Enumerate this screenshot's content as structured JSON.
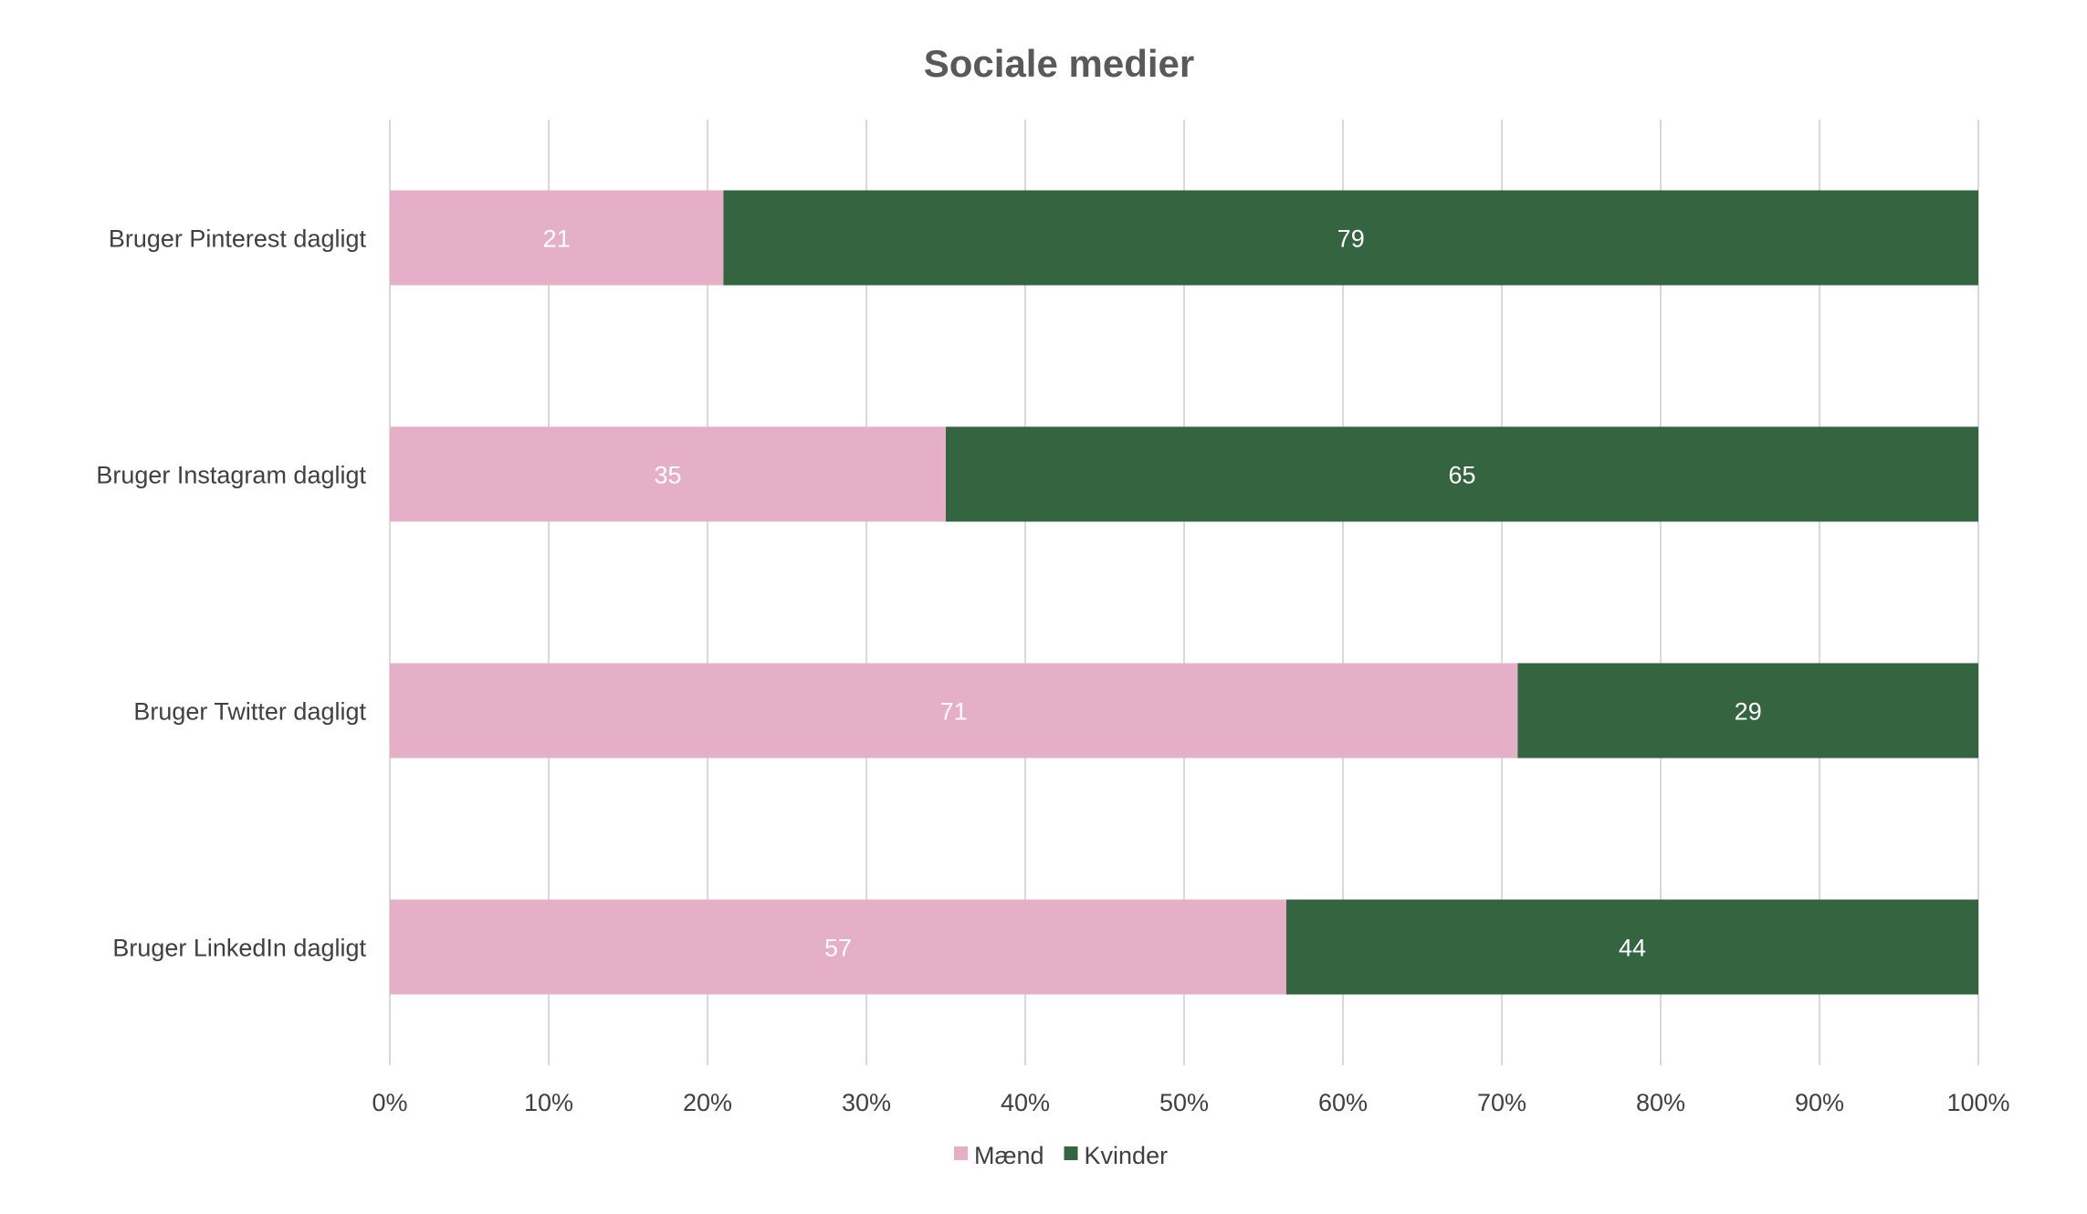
{
  "chart_data": {
    "type": "bar",
    "orientation": "horizontal",
    "stacked": "percent",
    "title": "Sociale medier",
    "categories": [
      "Bruger Pinterest dagligt",
      "Bruger Instagram dagligt",
      "Bruger Twitter dagligt",
      "Bruger LinkedIn dagligt"
    ],
    "series": [
      {
        "name": "Mænd",
        "color": "#e6afc8",
        "values": [
          21,
          35,
          71,
          57
        ]
      },
      {
        "name": "Kvinder",
        "color": "#356441",
        "values": [
          79,
          65,
          29,
          44
        ]
      }
    ],
    "xlim": [
      0,
      100
    ],
    "xticks": [
      "0%",
      "10%",
      "20%",
      "30%",
      "40%",
      "50%",
      "60%",
      "70%",
      "80%",
      "90%",
      "100%"
    ],
    "grid": "vertical",
    "legend": "bottom-center"
  }
}
